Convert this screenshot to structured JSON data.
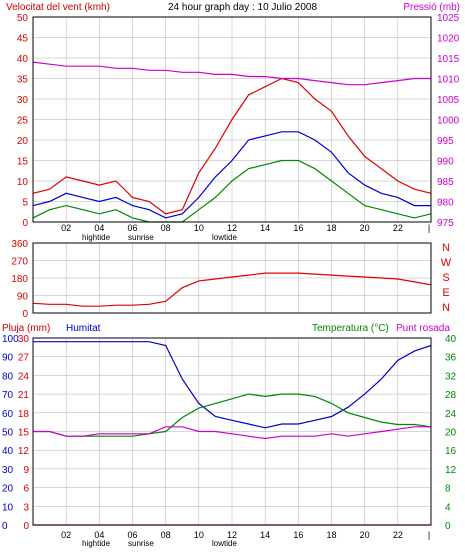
{
  "colors": {
    "frame": "#000000",
    "grid": "#b0b0b0",
    "background": "#ffffff",
    "wind": "#dd0000",
    "wind_avg": "#0000cc",
    "wind_min": "#008800",
    "pressure": "#cc00cc",
    "direction": "#dd0000",
    "rain": "#dd0000",
    "humidity": "#0000cc",
    "temperature": "#008800",
    "dewpoint": "#cc00cc"
  },
  "chart_data": [
    {
      "type": "line",
      "panel": "wind",
      "title": "24 hour graph day : 10 Julio 2008",
      "ylabel_left": "Velocitat del vent (kmh)",
      "ylabel_right": "Pressió (mb)",
      "ylim_left": [
        0,
        50
      ],
      "ylim_right": [
        975,
        1025
      ],
      "yticks_left": [
        "0",
        "5",
        "10",
        "15",
        "20",
        "25",
        "30",
        "35",
        "40",
        "45",
        "50"
      ],
      "yticks_right": [
        "975",
        "980",
        "985",
        "990",
        "995",
        "1000",
        "1005",
        "1010",
        "1015",
        "1020",
        "1025"
      ],
      "grid": true,
      "x_hours": [
        0,
        1,
        2,
        3,
        4,
        5,
        6,
        7,
        8,
        9,
        10,
        11,
        12,
        13,
        14,
        15,
        16,
        17,
        18,
        19,
        20,
        21,
        22,
        23,
        24
      ],
      "series": [
        {
          "values": [
            7,
            8,
            11,
            10,
            9,
            10,
            6,
            5,
            2,
            3,
            12,
            18,
            25,
            31,
            33,
            35,
            34,
            30,
            27,
            21,
            16,
            13,
            10,
            8,
            7
          ]
        },
        {
          "values": [
            4,
            5,
            7,
            6,
            5,
            6,
            4,
            3,
            1,
            2,
            6,
            11,
            15,
            20,
            21,
            22,
            22,
            20,
            17,
            12,
            9,
            7,
            6,
            4,
            4
          ]
        },
        {
          "values": [
            1,
            3,
            4,
            3,
            2,
            3,
            1,
            0,
            0,
            0,
            3,
            6,
            10,
            13,
            14,
            15,
            15,
            13,
            10,
            7,
            4,
            3,
            2,
            1,
            2
          ]
        },
        {
          "values": [
            1014,
            1013.5,
            1013,
            1013,
            1013,
            1012.5,
            1012.5,
            1012,
            1012,
            1011.5,
            1011.5,
            1011,
            1011,
            1010.5,
            1010.5,
            1010,
            1010,
            1009.5,
            1009,
            1008.5,
            1008.5,
            1009,
            1009.5,
            1010,
            1010
          ]
        }
      ],
      "xticks": [
        "02",
        "04",
        "06",
        "08",
        "10",
        "12",
        "14",
        "16",
        "18",
        "20",
        "22"
      ],
      "annotations": [
        "hightide",
        "sunrise",
        "lowtide"
      ]
    },
    {
      "type": "line",
      "panel": "direction",
      "ylim": [
        0,
        360
      ],
      "yticks": [
        "0",
        "90",
        "180",
        "270",
        "360"
      ],
      "compass_labels": [
        "N",
        "W",
        "S",
        "E",
        "N"
      ],
      "x_hours": [
        0,
        1,
        2,
        3,
        4,
        5,
        6,
        7,
        8,
        9,
        10,
        11,
        12,
        13,
        14,
        15,
        16,
        17,
        18,
        19,
        20,
        21,
        22,
        23,
        24
      ],
      "series": [
        {
          "values": [
            50,
            45,
            45,
            35,
            35,
            40,
            40,
            45,
            60,
            130,
            165,
            175,
            185,
            195,
            205,
            205,
            205,
            200,
            195,
            190,
            185,
            180,
            175,
            160,
            145
          ]
        }
      ]
    },
    {
      "type": "line",
      "panel": "temperature",
      "ylabel_left": "Pluja (mm)",
      "ylabel_left2": "Humitat",
      "ylabel_right": "Temperatura (°C)",
      "ylabel_right2": "Punt rosada",
      "ylim_left_rain": [
        0,
        30
      ],
      "ylim_left_humidity": [
        0,
        100
      ],
      "ylim_right": [
        0,
        40
      ],
      "yticks_humidity": [
        "0",
        "10",
        "20",
        "30",
        "40",
        "50",
        "60",
        "70",
        "80",
        "90",
        "100"
      ],
      "yticks_rain": [
        "0",
        "3",
        "6",
        "9",
        "12",
        "15",
        "18",
        "21",
        "24",
        "27",
        "30"
      ],
      "yticks_right": [
        "0",
        "4",
        "8",
        "12",
        "16",
        "20",
        "24",
        "28",
        "32",
        "36",
        "40"
      ],
      "x_hours": [
        0,
        1,
        2,
        3,
        4,
        5,
        6,
        7,
        8,
        9,
        10,
        11,
        12,
        13,
        14,
        15,
        16,
        17,
        18,
        19,
        20,
        21,
        22,
        23,
        24
      ],
      "series": [
        {
          "values": [
            0,
            0,
            0,
            0,
            0,
            0,
            0,
            0,
            0,
            0,
            0,
            0,
            0,
            0,
            0,
            0,
            0,
            0,
            0,
            0,
            0,
            0,
            0,
            0,
            0
          ]
        },
        {
          "values": [
            98,
            98,
            98,
            98,
            98,
            98,
            98,
            98,
            96,
            78,
            65,
            58,
            56,
            54,
            52,
            54,
            54,
            56,
            58,
            63,
            70,
            78,
            88,
            93,
            96
          ]
        },
        {
          "values": [
            20,
            20,
            19,
            19,
            19,
            19,
            19,
            19.5,
            20,
            23,
            25,
            26,
            27,
            28,
            27.5,
            28,
            28,
            27.5,
            26,
            24,
            23,
            22,
            21.5,
            21.5,
            21
          ]
        },
        {
          "values": [
            20,
            20,
            19,
            19,
            19.5,
            19.5,
            19.5,
            19.5,
            21,
            21,
            20,
            20,
            19.5,
            19,
            18.5,
            19,
            19,
            19,
            19.5,
            19,
            19.5,
            20,
            20.5,
            21,
            21
          ]
        }
      ],
      "xticks": [
        "02",
        "04",
        "06",
        "08",
        "10",
        "12",
        "14",
        "16",
        "18",
        "20",
        "22"
      ],
      "annotations": [
        "hightide",
        "sunrise",
        "lowtide"
      ]
    }
  ]
}
